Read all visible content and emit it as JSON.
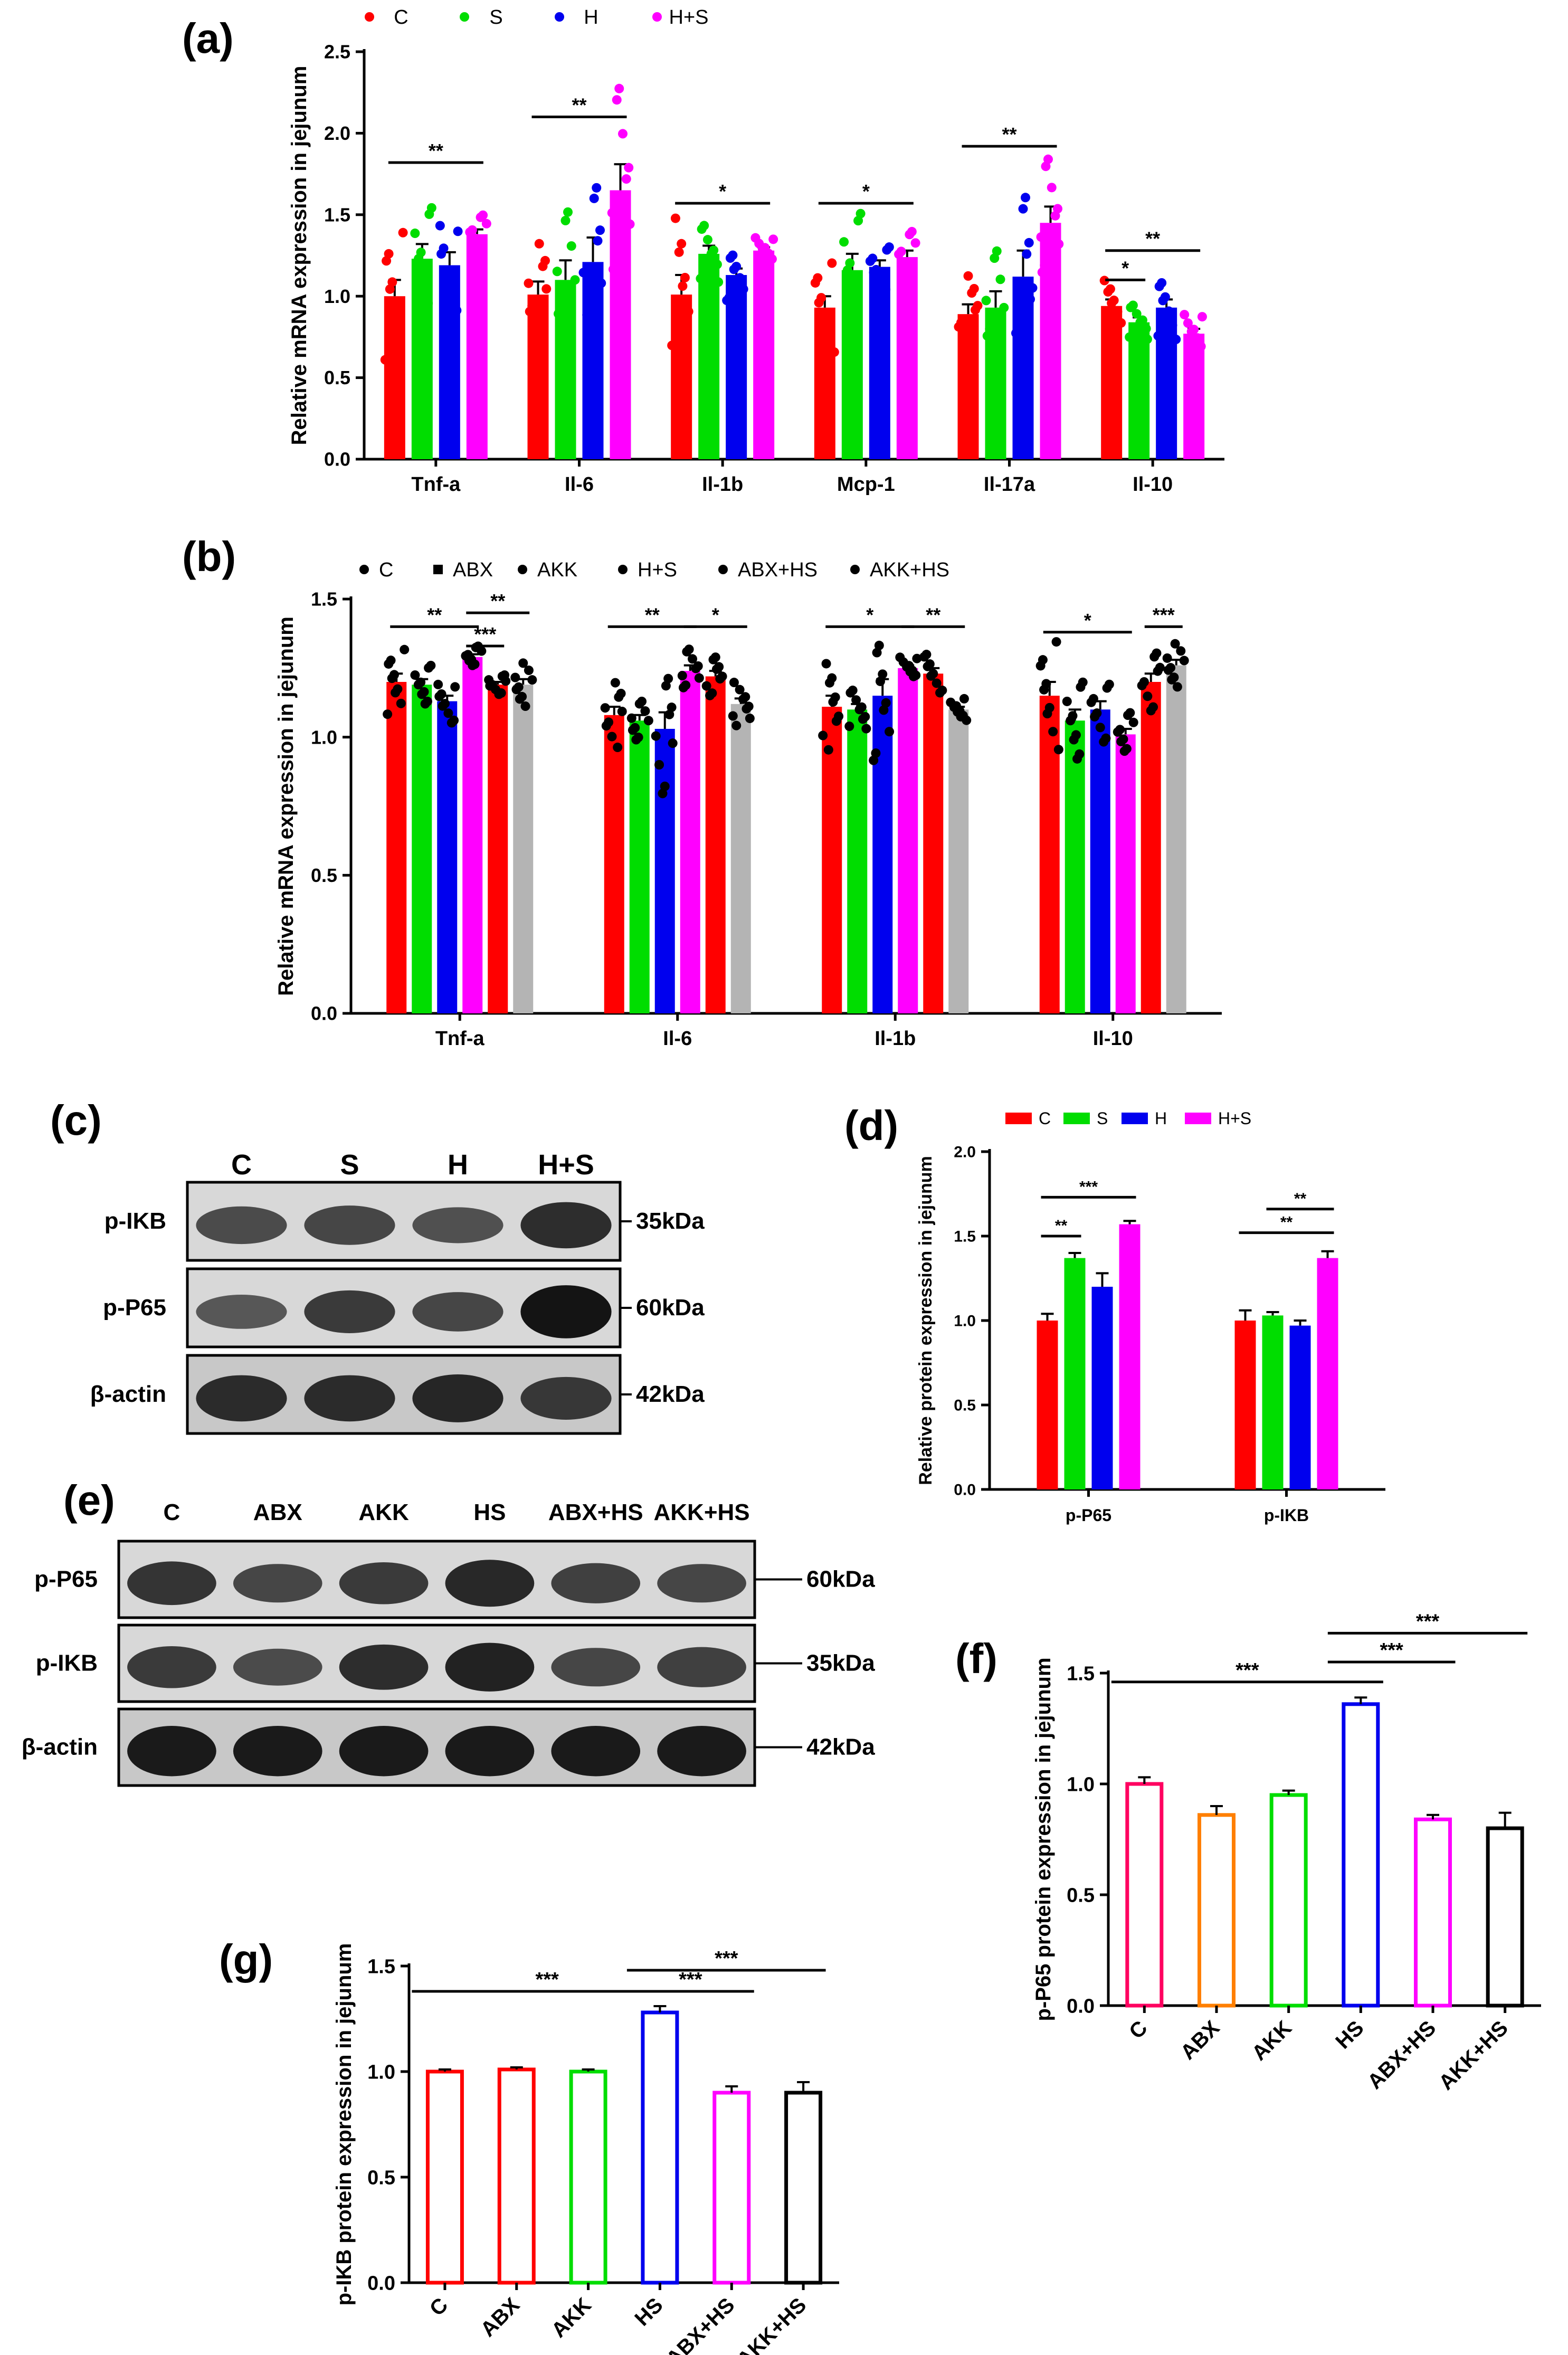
{
  "colors": {
    "red": "#ff0000",
    "green": "#00dd00",
    "blue": "#0000ee",
    "magenta": "#ff00ff",
    "gray": "#b4b4b4",
    "orange": "#ff7f00",
    "pink": "#ff0060",
    "black": "#000000"
  },
  "panels": {
    "a": "(a)",
    "b": "(b)",
    "c": "(c)",
    "d": "(d)",
    "e": "(e)",
    "f": "(f)",
    "g": "(g)"
  },
  "blot_c": {
    "lanes": [
      "C",
      "S",
      "H",
      "H+S"
    ],
    "rows": [
      {
        "label": "p-IKB",
        "size": "35kDa",
        "intensity": [
          0.55,
          0.6,
          0.5,
          0.8
        ]
      },
      {
        "label": "p-P65",
        "size": "60kDa",
        "intensity": [
          0.45,
          0.7,
          0.6,
          1.0
        ]
      },
      {
        "label": "β-actin",
        "size": "42kDa",
        "intensity": [
          0.8,
          0.8,
          0.85,
          0.7
        ]
      }
    ]
  },
  "blot_e": {
    "lanes": [
      "C",
      "ABX",
      "AKK",
      "HS",
      "ABX+HS",
      "AKK+HS"
    ],
    "rows": [
      {
        "label": "p-P65",
        "size": "60kDa",
        "intensity": [
          0.75,
          0.6,
          0.7,
          0.85,
          0.65,
          0.6
        ]
      },
      {
        "label": "p-IKB",
        "size": "35kDa",
        "intensity": [
          0.7,
          0.55,
          0.8,
          0.9,
          0.6,
          0.65
        ]
      },
      {
        "label": "β-actin",
        "size": "42kDa",
        "intensity": [
          0.95,
          0.95,
          0.95,
          0.95,
          0.95,
          0.95
        ]
      }
    ]
  },
  "chart_data": [
    {
      "id": "a",
      "type": "bar",
      "ylabel": "Relative mRNA expression in jejunum",
      "ylim": [
        0,
        2.5
      ],
      "yticks": [
        0.0,
        0.5,
        1.0,
        1.5,
        2.0,
        2.5
      ],
      "categories": [
        "Tnf-a",
        "Il-6",
        "Il-1b",
        "Mcp-1",
        "Il-17a",
        "Il-10"
      ],
      "legend": "top",
      "series": [
        {
          "name": "C",
          "color": "#ff0000",
          "values": [
            1.0,
            1.01,
            1.01,
            0.93,
            0.89,
            0.94
          ],
          "errors": [
            0.1,
            0.08,
            0.12,
            0.07,
            0.06,
            0.04
          ]
        },
        {
          "name": "S",
          "color": "#00dd00",
          "values": [
            1.23,
            1.1,
            1.26,
            1.16,
            0.93,
            0.84
          ],
          "errors": [
            0.09,
            0.12,
            0.05,
            0.1,
            0.1,
            0.03
          ]
        },
        {
          "name": "H",
          "color": "#0000ee",
          "values": [
            1.19,
            1.21,
            1.13,
            1.18,
            1.12,
            0.93
          ],
          "errors": [
            0.08,
            0.15,
            0.04,
            0.04,
            0.16,
            0.05
          ]
        },
        {
          "name": "H+S",
          "color": "#ff00ff",
          "values": [
            1.38,
            1.65,
            1.28,
            1.24,
            1.45,
            0.77
          ],
          "errors": [
            0.03,
            0.16,
            0.02,
            0.04,
            0.1,
            0.03
          ]
        }
      ],
      "significance": [
        {
          "cat": 0,
          "from": 0,
          "to": 3,
          "y": 1.82,
          "label": "**"
        },
        {
          "cat": 1,
          "from": 0,
          "to": 3,
          "y": 2.1,
          "label": "**"
        },
        {
          "cat": 2,
          "from": 0,
          "to": 3,
          "y": 1.57,
          "label": "*"
        },
        {
          "cat": 3,
          "from": 0,
          "to": 3,
          "y": 1.57,
          "label": "*"
        },
        {
          "cat": 4,
          "from": 0,
          "to": 3,
          "y": 1.92,
          "label": "**"
        },
        {
          "cat": 5,
          "from": 0,
          "to": 1,
          "y": 1.1,
          "label": "*"
        },
        {
          "cat": 5,
          "from": 0,
          "to": 3,
          "y": 1.28,
          "label": "**"
        }
      ]
    },
    {
      "id": "b",
      "type": "bar",
      "ylabel": "Relative mRNA expression in jejunum",
      "ylim": [
        0,
        1.5
      ],
      "yticks": [
        0.0,
        0.5,
        1.0,
        1.5
      ],
      "categories": [
        "Tnf-a",
        "Il-6",
        "Il-1b",
        "Il-10"
      ],
      "legend": "top",
      "series": [
        {
          "name": "C",
          "color": "#ff0000",
          "values": [
            1.2,
            1.08,
            1.11,
            1.15
          ],
          "errors": [
            0.03,
            0.03,
            0.04,
            0.05
          ]
        },
        {
          "name": "ABX",
          "color": "#00dd00",
          "values": [
            1.19,
            1.06,
            1.1,
            1.06
          ],
          "errors": [
            0.02,
            0.02,
            0.02,
            0.04
          ]
        },
        {
          "name": "AKK",
          "color": "#0000ee",
          "values": [
            1.13,
            1.03,
            1.15,
            1.1
          ],
          "errors": [
            0.02,
            0.06,
            0.06,
            0.03
          ]
        },
        {
          "name": "H+S",
          "color": "#ff00ff",
          "values": [
            1.29,
            1.24,
            1.25,
            1.01
          ],
          "errors": [
            0.01,
            0.02,
            0.01,
            0.02
          ]
        },
        {
          "name": "ABX+HS",
          "color": "#ff0000",
          "values": [
            1.19,
            1.22,
            1.23,
            1.2
          ],
          "errors": [
            0.01,
            0.02,
            0.02,
            0.03
          ]
        },
        {
          "name": "AKK+HS",
          "color": "#b4b4b4",
          "values": [
            1.19,
            1.12,
            1.1,
            1.26
          ],
          "errors": [
            0.02,
            0.02,
            0.01,
            0.02
          ]
        }
      ],
      "legend_labels": [
        "C",
        "ABX",
        "AKK",
        "H+S",
        "ABX+HS",
        "AKK+HS"
      ],
      "significance": [
        {
          "cat": 0,
          "from": 0,
          "to": 3,
          "y": 1.4,
          "label": "**"
        },
        {
          "cat": 0,
          "from": 3,
          "to": 4,
          "y": 1.33,
          "label": "***"
        },
        {
          "cat": 0,
          "from": 3,
          "to": 5,
          "y": 1.45,
          "label": "**"
        },
        {
          "cat": 1,
          "from": 0,
          "to": 3,
          "y": 1.4,
          "label": "**"
        },
        {
          "cat": 1,
          "from": 3,
          "to": 5,
          "y": 1.4,
          "label": "*"
        },
        {
          "cat": 2,
          "from": 0,
          "to": 3,
          "y": 1.4,
          "label": "*"
        },
        {
          "cat": 2,
          "from": 3,
          "to": 5,
          "y": 1.4,
          "label": "**"
        },
        {
          "cat": 3,
          "from": 0,
          "to": 3,
          "y": 1.38,
          "label": "*"
        },
        {
          "cat": 3,
          "from": 4,
          "to": 5,
          "y": 1.4,
          "label": "***"
        }
      ]
    },
    {
      "id": "d",
      "type": "bar",
      "ylabel": "Relative protein expression in jejunum",
      "ylim": [
        0,
        2.0
      ],
      "yticks": [
        0.0,
        0.5,
        1.0,
        1.5,
        2.0
      ],
      "categories": [
        "p-P65",
        "p-IKB"
      ],
      "legend": "top",
      "series": [
        {
          "name": "C",
          "color": "#ff0000",
          "values": [
            1.0,
            1.0
          ],
          "errors": [
            0.04,
            0.06
          ]
        },
        {
          "name": "S",
          "color": "#00dd00",
          "values": [
            1.37,
            1.03
          ],
          "errors": [
            0.03,
            0.02
          ]
        },
        {
          "name": "H",
          "color": "#0000ee",
          "values": [
            1.2,
            0.97
          ],
          "errors": [
            0.08,
            0.03
          ]
        },
        {
          "name": "H+S",
          "color": "#ff00ff",
          "values": [
            1.57,
            1.37
          ],
          "errors": [
            0.02,
            0.04
          ]
        }
      ],
      "significance": [
        {
          "cat": 0,
          "from": 0,
          "to": 1,
          "y": 1.5,
          "label": "**"
        },
        {
          "cat": 0,
          "from": 0,
          "to": 3,
          "y": 1.73,
          "label": "***"
        },
        {
          "cat": 1,
          "from": 1,
          "to": 3,
          "y": 1.66,
          "label": "**"
        },
        {
          "cat": 1,
          "from": 0,
          "to": 3,
          "y": 1.52,
          "label": "**"
        }
      ]
    },
    {
      "id": "f",
      "type": "bar",
      "ylabel": "p-P65 protein expression in jejunum",
      "ylim": [
        0,
        1.5
      ],
      "yticks": [
        0.0,
        0.5,
        1.0,
        1.5
      ],
      "categories": [
        "C",
        "ABX",
        "AKK",
        "HS",
        "ABX+HS",
        "AKK+HS"
      ],
      "values": [
        1.0,
        0.86,
        0.95,
        1.36,
        0.84,
        0.8
      ],
      "errors": [
        0.03,
        0.04,
        0.02,
        0.03,
        0.02,
        0.07
      ],
      "colors": [
        "#ff0060",
        "#ff7f00",
        "#00dd00",
        "#0000ee",
        "#ff00ff",
        "#000000"
      ],
      "significance": [
        {
          "from": 0,
          "to": 3,
          "y": 1.46,
          "label": "***"
        },
        {
          "from": 3,
          "to": 4,
          "y": 1.55,
          "label": "***"
        },
        {
          "from": 3,
          "to": 5,
          "y": 1.68,
          "label": "***"
        }
      ]
    },
    {
      "id": "g",
      "type": "bar",
      "ylabel": "p-IKB protein expression in jejunum",
      "ylim": [
        0,
        1.5
      ],
      "yticks": [
        0.0,
        0.5,
        1.0,
        1.5
      ],
      "categories": [
        "C",
        "ABX",
        "AKK",
        "HS",
        "ABX+HS",
        "AKK+HS"
      ],
      "values": [
        1.0,
        1.01,
        1.0,
        1.28,
        0.9,
        0.9
      ],
      "errors": [
        0.01,
        0.01,
        0.01,
        0.03,
        0.03,
        0.05
      ],
      "colors": [
        "#ff0000",
        "#ff0000",
        "#00dd00",
        "#0000ee",
        "#ff00ff",
        "#000000"
      ],
      "significance": [
        {
          "from": 0,
          "to": 3,
          "y": 1.38,
          "label": "***"
        },
        {
          "from": 3,
          "to": 4,
          "y": 1.38,
          "label": "***"
        },
        {
          "from": 3,
          "to": 5,
          "y": 1.48,
          "label": "***"
        }
      ]
    }
  ]
}
